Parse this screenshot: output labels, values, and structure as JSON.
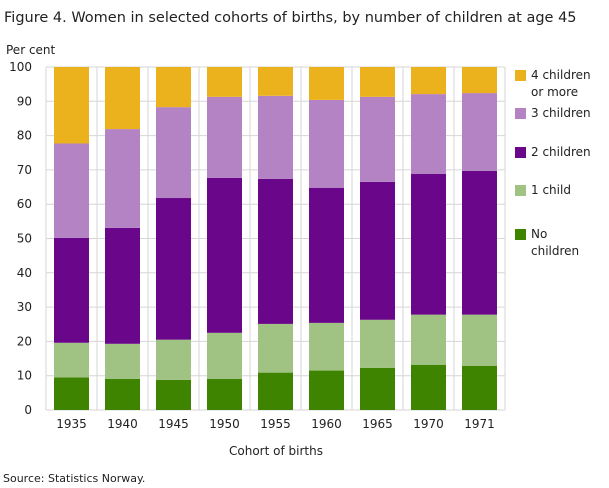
{
  "chart_data": {
    "type": "bar",
    "stacked": true,
    "title": "Figure 4. Women in selected cohorts of births, by number of children at age 45",
    "ylabel": "Per cent",
    "xlabel": "Cohort of births",
    "source": "Source: Statistics Norway.",
    "ylim": [
      0,
      100
    ],
    "yticks": [
      0,
      10,
      20,
      30,
      40,
      50,
      60,
      70,
      80,
      90,
      100
    ],
    "grid": true,
    "legend_position": "right",
    "categories": [
      "1935",
      "1940",
      "1945",
      "1950",
      "1955",
      "1960",
      "1965",
      "1970",
      "1971"
    ],
    "series": [
      {
        "name": "No children",
        "color": "#3f8400",
        "values": [
          9.5,
          9.1,
          8.8,
          9.1,
          10.9,
          11.5,
          12.3,
          13.2,
          12.9
        ]
      },
      {
        "name": "1 child",
        "color": "#a0c282",
        "values": [
          10.1,
          10.2,
          11.7,
          13.4,
          14.2,
          13.9,
          14.0,
          14.6,
          14.9
        ]
      },
      {
        "name": "2 children",
        "color": "#690689",
        "values": [
          30.6,
          33.8,
          41.3,
          45.2,
          42.3,
          39.4,
          40.2,
          41.0,
          41.9
        ]
      },
      {
        "name": "3 children",
        "color": "#b383c4",
        "values": [
          27.5,
          28.8,
          26.5,
          23.6,
          24.2,
          25.6,
          24.8,
          23.3,
          22.7
        ]
      },
      {
        "name": "4 children or more",
        "color": "#ecb21e",
        "values": [
          22.3,
          18.1,
          11.7,
          8.7,
          8.4,
          9.6,
          8.7,
          7.9,
          7.6
        ]
      }
    ]
  }
}
